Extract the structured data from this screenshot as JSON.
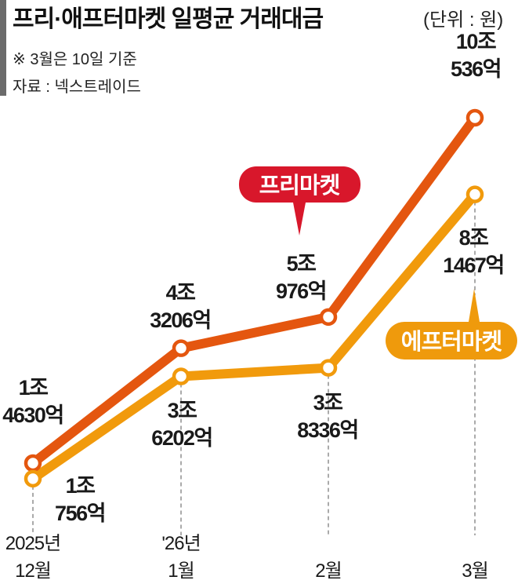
{
  "chart_data": {
    "type": "line",
    "title": "프리·애프터마켓 일평균 거래대금",
    "unit": "(단위 : 원)",
    "notes": [
      "※ 3월은 10일 기준",
      "자료 : 넥스트레이드"
    ],
    "categories": [
      [
        "2025년",
        "12월"
      ],
      [
        "'26년",
        "1월"
      ],
      [
        "",
        "2월"
      ],
      [
        "",
        "3월"
      ]
    ],
    "ylabel": "",
    "xlabel": "",
    "grid": false,
    "series": [
      {
        "name": "프리마켓",
        "color": "#E4560F",
        "legend_color": "#D8172B",
        "values_eok": [
          14630,
          43206,
          50976,
          100536
        ],
        "labels": [
          [
            "1조",
            "4630억"
          ],
          [
            "4조",
            "3206억"
          ],
          [
            "5조",
            "976억"
          ],
          [
            "10조",
            "536억"
          ]
        ]
      },
      {
        "name": "에프터마켓",
        "color": "#F19A0C",
        "legend_color": "#EF9A0C",
        "values_eok": [
          10756,
          36202,
          38336,
          81467
        ],
        "labels": [
          [
            "1조",
            "756억"
          ],
          [
            "3조",
            "6202억"
          ],
          [
            "3조",
            "8336억"
          ],
          [
            "8조",
            "1467억"
          ]
        ]
      }
    ]
  }
}
